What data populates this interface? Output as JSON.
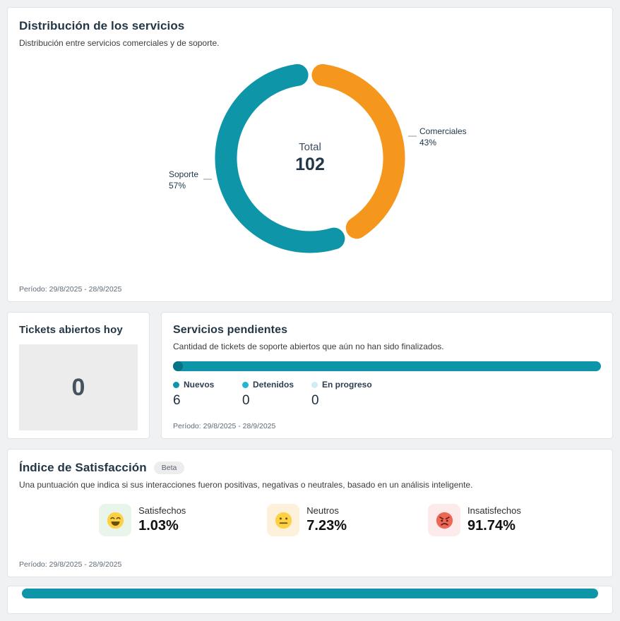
{
  "distribution": {
    "title": "Distribución de los servicios",
    "subtitle": "Distribución entre servicios comerciales y de soporte.",
    "center_label": "Total",
    "period": "Período: 29/8/2025 - 28/9/2025"
  },
  "tickets": {
    "title": "Tickets abiertos hoy",
    "value": "0"
  },
  "pendientes": {
    "title": "Servicios pendientes",
    "subtitle": "Cantidad de tickets de soporte abiertos que aún no han sido finalizados.",
    "period": "Período: 29/8/2025 - 28/9/2025"
  },
  "satisfaction": {
    "title": "Índice de Satisfacción",
    "badge": "Beta",
    "subtitle": "Una puntuación que indica si sus interacciones fueron positivas, negativas o neutrales, basado en un análisis inteligente.",
    "period": "Período: 29/8/2025 - 28/9/2025",
    "items": [
      {
        "icon": "happy-face-icon",
        "label": "Satisfechos",
        "value": "1.03%",
        "bg": "#e9f5ea"
      },
      {
        "icon": "neutral-face-icon",
        "label": "Neutros",
        "value": "7.23%",
        "bg": "#fdf1dc"
      },
      {
        "icon": "angry-face-icon",
        "label": "Insatisfechos",
        "value": "91.74%",
        "bg": "#fdeaea"
      }
    ]
  },
  "chart_data": [
    {
      "type": "pie",
      "donut": true,
      "title": "Distribución de los servicios",
      "labels": [
        "Comerciales",
        "Soporte"
      ],
      "values": [
        43,
        57
      ],
      "pct_labels": [
        "43%",
        "57%"
      ],
      "center_total": 102,
      "colors": [
        "#f5961d",
        "#0e95a8"
      ],
      "start_angle_deg": 0,
      "direction": "clockwise",
      "legend_position": "callout-labels"
    },
    {
      "type": "bar",
      "orientation": "horizontal-stacked",
      "title": "Servicios pendientes",
      "categories": [
        "Nuevos",
        "Detenidos",
        "En progreso"
      ],
      "values": [
        6,
        0,
        0
      ],
      "colors": [
        "#0e95a8",
        "#25b6cf",
        "#cdeef5"
      ],
      "xlim": [
        0,
        6
      ],
      "grid": false,
      "legend_position": "below"
    }
  ],
  "colors": {
    "teal": "#0e95a8",
    "orange": "#f5961d",
    "page_background": "#f0f1f2",
    "card_border": "#e3e3e3",
    "heading": "#243746",
    "badge_background": "#ededed",
    "satisfied_bg": "#e9f5ea",
    "neutral_bg": "#fdf1dc",
    "unsatisfied_bg": "#fdeaea"
  }
}
